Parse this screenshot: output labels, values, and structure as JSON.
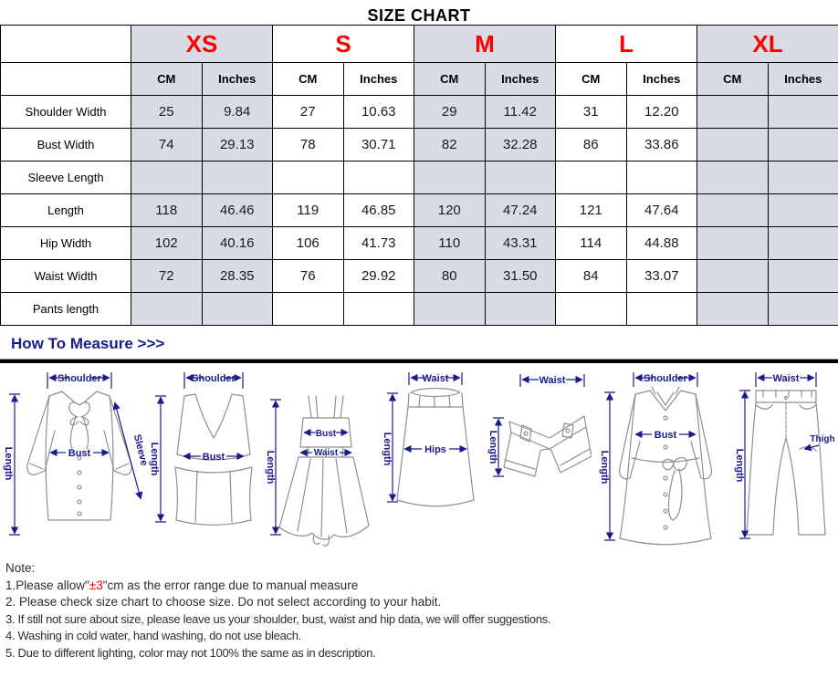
{
  "title": "SIZE CHART",
  "size_chart": {
    "sizes": [
      "XS",
      "S",
      "M",
      "L",
      "XL"
    ],
    "unit_headers": [
      "CM",
      "Inches"
    ],
    "rows": [
      {
        "label": "Shoulder Width",
        "values": [
          "25",
          "9.84",
          "27",
          "10.63",
          "29",
          "11.42",
          "31",
          "12.20",
          "",
          ""
        ]
      },
      {
        "label": "Bust Width",
        "values": [
          "74",
          "29.13",
          "78",
          "30.71",
          "82",
          "32.28",
          "86",
          "33.86",
          "",
          ""
        ]
      },
      {
        "label": "Sleeve Length",
        "values": [
          "",
          "",
          "",
          "",
          "",
          "",
          "",
          "",
          "",
          ""
        ]
      },
      {
        "label": "Length",
        "values": [
          "118",
          "46.46",
          "119",
          "46.85",
          "120",
          "47.24",
          "121",
          "47.64",
          "",
          ""
        ]
      },
      {
        "label": "Hip Width",
        "values": [
          "102",
          "40.16",
          "106",
          "41.73",
          "110",
          "43.31",
          "114",
          "44.88",
          "",
          ""
        ]
      },
      {
        "label": "Waist Width",
        "values": [
          "72",
          "28.35",
          "76",
          "29.92",
          "80",
          "31.50",
          "84",
          "33.07",
          "",
          ""
        ]
      },
      {
        "label": "Pants length",
        "values": [
          "",
          "",
          "",
          "",
          "",
          "",
          "",
          "",
          "",
          ""
        ]
      }
    ]
  },
  "measure": {
    "heading": "How To Measure >>>",
    "figures": [
      {
        "name": "blouse",
        "labels": {
          "shoulder": "Shoulder",
          "bust": "Bust",
          "sleeve": "Sleeve",
          "length": "Length"
        }
      },
      {
        "name": "vest",
        "labels": {
          "shoulder": "Shoulder",
          "bust": "Bust",
          "length": "Length"
        }
      },
      {
        "name": "dress",
        "labels": {
          "bust": "Bust",
          "waist": "Waist",
          "length": "Length"
        }
      },
      {
        "name": "skirt",
        "labels": {
          "waist": "Waist",
          "hips": "Hips",
          "length": "Length"
        }
      },
      {
        "name": "shorts",
        "labels": {
          "waist": "Waist",
          "length": "Length"
        }
      },
      {
        "name": "coat",
        "labels": {
          "shoulder": "Shoulder",
          "bust": "Bust",
          "length": "Length"
        }
      },
      {
        "name": "pants",
        "labels": {
          "waist": "Waist",
          "thigh": "Thigh",
          "length": "Length"
        }
      }
    ]
  },
  "notes": {
    "heading": "Note:",
    "line1": {
      "prefix": "1.Please allow\"",
      "highlight": "±3",
      "suffix": "\"cm as the error range due to manual measure"
    },
    "items": [
      "2. Please check size chart to choose size. Do not select according to your habit.",
      "3. If still not sure about size, please leave us your shoulder, bust, waist and hip data, we will offer suggestions.",
      "4. Washing in cold water, hand washing, do not use bleach.",
      "5. Due to different lighting, color may not 100% the same as in description."
    ]
  },
  "colors": {
    "accent_red": "#ff0000",
    "navy": "#1a1a8f",
    "cell_shade": "#d9dce4"
  }
}
